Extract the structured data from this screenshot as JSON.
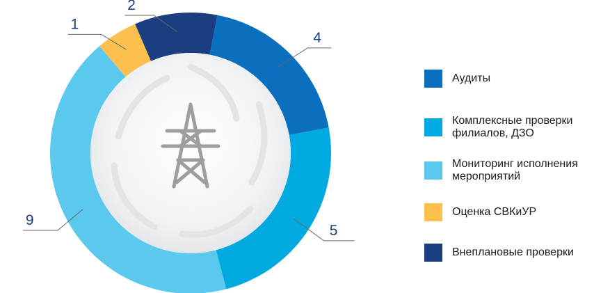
{
  "chart_data": {
    "type": "pie",
    "title": "",
    "categories": [
      "Аудиты",
      "Комплексные проверки филиалов, ДЗО",
      "Мониторинг исполнения мероприятий",
      "Оценка СВКиУР",
      "Внеплановые проверки"
    ],
    "values": [
      4,
      5,
      9,
      1,
      2
    ],
    "colors": [
      "#0a6fbf",
      "#00a9df",
      "#5bc8ee",
      "#fdc04f",
      "#1a3e80"
    ],
    "data_labels": [
      "4",
      "5",
      "9",
      "1",
      "2"
    ],
    "legend_placement": "right"
  },
  "legend": {
    "items": [
      {
        "label": "Аудиты",
        "color": "#0a6fbf"
      },
      {
        "label": "Комплексные проверки филиалов, ДЗО",
        "color": "#00a9df"
      },
      {
        "label": "Мониторинг исполнения мероприятий",
        "color": "#5bc8ee"
      },
      {
        "label": "Оценка СВКиУР",
        "color": "#fdc04f"
      },
      {
        "label": "Внеплановые проверки",
        "color": "#1a3e80"
      }
    ]
  },
  "center_icon": "power-line-tower-icon"
}
